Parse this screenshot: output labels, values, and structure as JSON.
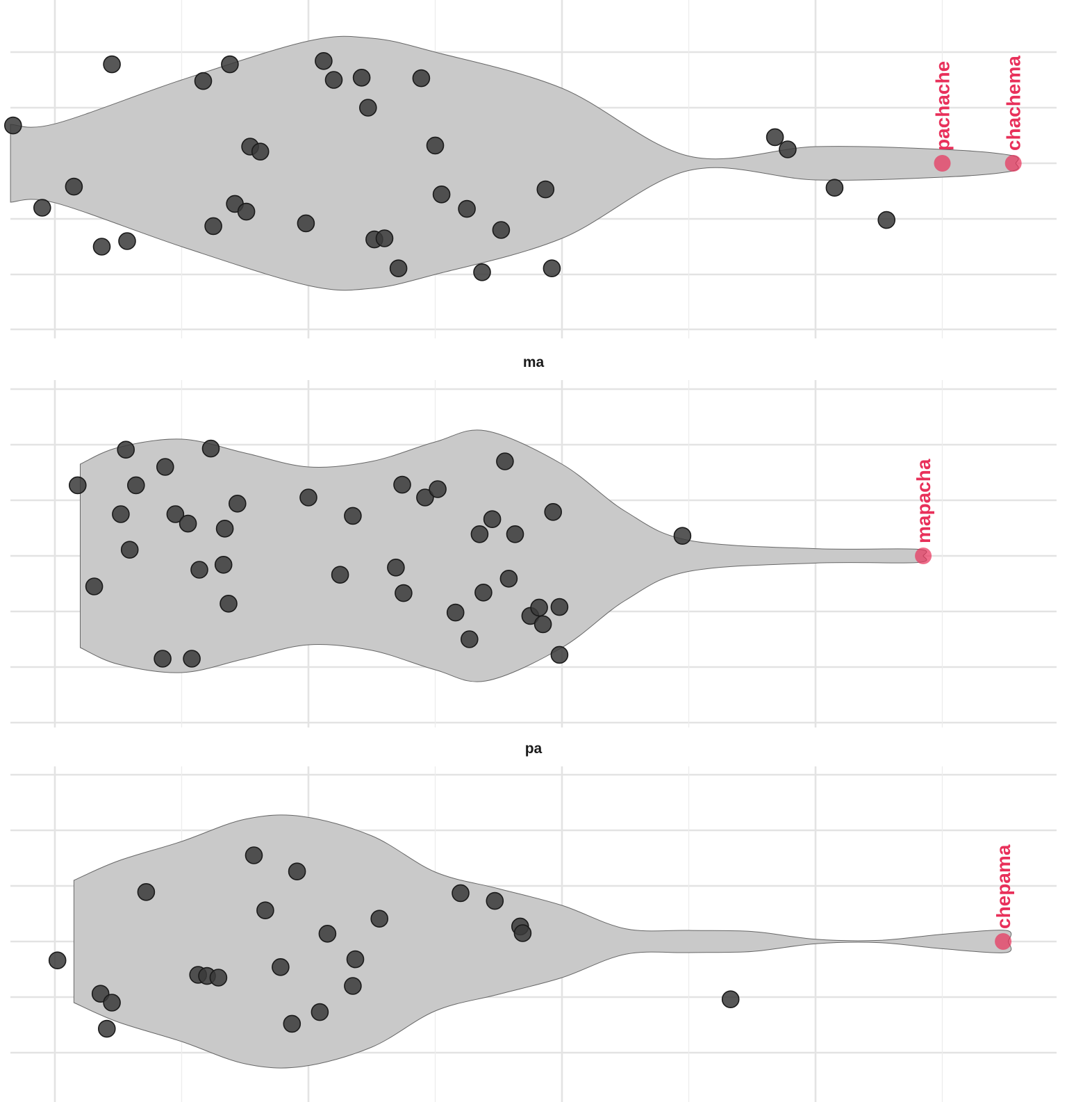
{
  "chart_data": [
    {
      "type": "violin",
      "title": "",
      "xlabel": "",
      "ylabel": "",
      "xlim": [
        -0.35,
        7.95
      ],
      "ylim": [
        -3,
        3
      ],
      "grid": true,
      "violin_color": "#c9c9c9",
      "point_color": "#333333",
      "highlight_color": "#e8305a",
      "violin_profile": [
        [
          -0.35,
          0.7
        ],
        [
          0,
          0.71
        ],
        [
          1,
          1.5
        ],
        [
          2,
          2.2
        ],
        [
          2.5,
          2.25
        ],
        [
          3,
          2.0
        ],
        [
          4,
          1.35
        ],
        [
          5,
          0.13
        ],
        [
          6,
          0.3
        ],
        [
          7,
          0.25
        ],
        [
          7.55,
          0.14
        ],
        [
          7.58,
          0.0
        ]
      ],
      "points": [
        {
          "x": -0.33,
          "y": 0.68
        },
        {
          "x": 0.45,
          "y": 1.78
        },
        {
          "x": 1.17,
          "y": 1.48
        },
        {
          "x": 1.38,
          "y": 1.78
        },
        {
          "x": 2.12,
          "y": 1.84
        },
        {
          "x": 2.2,
          "y": 1.5
        },
        {
          "x": 2.42,
          "y": 1.54
        },
        {
          "x": 2.47,
          "y": 1.0
        },
        {
          "x": 2.89,
          "y": 1.53
        },
        {
          "x": -0.1,
          "y": -0.8
        },
        {
          "x": 0.15,
          "y": -0.42
        },
        {
          "x": 0.37,
          "y": -1.5
        },
        {
          "x": 0.57,
          "y": -1.4
        },
        {
          "x": 1.25,
          "y": -1.13
        },
        {
          "x": 1.42,
          "y": -0.73
        },
        {
          "x": 1.51,
          "y": -0.87
        },
        {
          "x": 1.54,
          "y": 0.3
        },
        {
          "x": 1.62,
          "y": 0.21
        },
        {
          "x": 1.98,
          "y": -1.08
        },
        {
          "x": 2.52,
          "y": -1.37
        },
        {
          "x": 2.6,
          "y": -1.35
        },
        {
          "x": 2.71,
          "y": -1.89
        },
        {
          "x": 3.0,
          "y": 0.32
        },
        {
          "x": 3.05,
          "y": -0.56
        },
        {
          "x": 3.25,
          "y": -0.82
        },
        {
          "x": 3.37,
          "y": -1.96
        },
        {
          "x": 3.52,
          "y": -1.2
        },
        {
          "x": 3.87,
          "y": -0.47
        },
        {
          "x": 3.92,
          "y": -1.89
        },
        {
          "x": 5.68,
          "y": 0.47
        },
        {
          "x": 5.78,
          "y": 0.25
        },
        {
          "x": 6.15,
          "y": -0.44
        },
        {
          "x": 6.56,
          "y": -1.02
        }
      ],
      "highlighted": [
        {
          "label": "pachache",
          "x": 7.0,
          "y": 0.0
        },
        {
          "label": "chachema",
          "x": 7.56,
          "y": 0.0
        }
      ]
    },
    {
      "type": "violin",
      "title": "ma",
      "xlabel": "",
      "ylabel": "",
      "xlim": [
        -0.35,
        7.95
      ],
      "ylim": [
        -3,
        3
      ],
      "grid": true,
      "violin_profile": [
        [
          0.2,
          1.65
        ],
        [
          0.5,
          1.95
        ],
        [
          1.0,
          2.1
        ],
        [
          1.5,
          1.85
        ],
        [
          2.0,
          1.6
        ],
        [
          2.5,
          1.7
        ],
        [
          3.0,
          2.05
        ],
        [
          3.4,
          2.25
        ],
        [
          4.0,
          1.65
        ],
        [
          4.5,
          0.8
        ],
        [
          5.0,
          0.28
        ],
        [
          6.0,
          0.13
        ],
        [
          6.8,
          0.12
        ],
        [
          6.85,
          0.0
        ]
      ],
      "points": [
        {
          "x": 0.18,
          "y": 1.27
        },
        {
          "x": 0.56,
          "y": 1.91
        },
        {
          "x": 0.64,
          "y": 1.27
        },
        {
          "x": 0.87,
          "y": 1.6
        },
        {
          "x": 1.23,
          "y": 1.93
        },
        {
          "x": 0.52,
          "y": 0.75
        },
        {
          "x": 0.59,
          "y": 0.11
        },
        {
          "x": 0.95,
          "y": 0.75
        },
        {
          "x": 1.05,
          "y": 0.58
        },
        {
          "x": 1.44,
          "y": 0.94
        },
        {
          "x": 1.34,
          "y": 0.49
        },
        {
          "x": 2.0,
          "y": 1.05
        },
        {
          "x": 2.35,
          "y": 0.72
        },
        {
          "x": 2.74,
          "y": 1.28
        },
        {
          "x": 2.92,
          "y": 1.05
        },
        {
          "x": 3.02,
          "y": 1.2
        },
        {
          "x": 3.55,
          "y": 1.7
        },
        {
          "x": 4.95,
          "y": 0.36
        },
        {
          "x": 3.45,
          "y": 0.66
        },
        {
          "x": 3.35,
          "y": 0.39
        },
        {
          "x": 3.63,
          "y": 0.39
        },
        {
          "x": 3.93,
          "y": 0.79
        },
        {
          "x": 0.31,
          "y": -0.55
        },
        {
          "x": 1.14,
          "y": -0.25
        },
        {
          "x": 1.33,
          "y": -0.16
        },
        {
          "x": 1.37,
          "y": -0.86
        },
        {
          "x": 2.25,
          "y": -0.34
        },
        {
          "x": 2.69,
          "y": -0.21
        },
        {
          "x": 2.75,
          "y": -0.67
        },
        {
          "x": 3.16,
          "y": -1.02
        },
        {
          "x": 3.27,
          "y": -1.5
        },
        {
          "x": 3.38,
          "y": -0.66
        },
        {
          "x": 3.58,
          "y": -0.41
        },
        {
          "x": 3.75,
          "y": -1.08
        },
        {
          "x": 3.82,
          "y": -0.93
        },
        {
          "x": 3.85,
          "y": -1.23
        },
        {
          "x": 0.85,
          "y": -1.85
        },
        {
          "x": 1.08,
          "y": -1.85
        },
        {
          "x": 3.98,
          "y": -0.92
        },
        {
          "x": 3.98,
          "y": -1.78
        }
      ],
      "highlighted": [
        {
          "label": "mapacha",
          "x": 6.85,
          "y": 0.0
        }
      ]
    },
    {
      "type": "violin",
      "title": "pa",
      "xlabel": "",
      "ylabel": "",
      "xlim": [
        -0.35,
        7.95
      ],
      "ylim": [
        -3,
        3
      ],
      "grid": true,
      "violin_profile": [
        [
          0.15,
          1.1
        ],
        [
          0.5,
          1.45
        ],
        [
          1.0,
          1.8
        ],
        [
          1.5,
          2.2
        ],
        [
          1.95,
          2.25
        ],
        [
          2.5,
          1.9
        ],
        [
          3.0,
          1.25
        ],
        [
          3.5,
          0.95
        ],
        [
          4.0,
          0.65
        ],
        [
          4.5,
          0.23
        ],
        [
          5.0,
          0.2
        ],
        [
          5.5,
          0.18
        ],
        [
          6.0,
          0.04
        ],
        [
          6.5,
          0.02
        ],
        [
          7.0,
          0.13
        ],
        [
          7.5,
          0.2
        ],
        [
          7.52,
          0.0
        ]
      ],
      "points": [
        {
          "x": 0.72,
          "y": 0.89
        },
        {
          "x": 1.57,
          "y": 1.55
        },
        {
          "x": 1.91,
          "y": 1.26
        },
        {
          "x": 1.66,
          "y": 0.56
        },
        {
          "x": 2.15,
          "y": 0.14
        },
        {
          "x": 2.56,
          "y": 0.41
        },
        {
          "x": 3.2,
          "y": 0.87
        },
        {
          "x": 3.47,
          "y": 0.73
        },
        {
          "x": 3.67,
          "y": 0.27
        },
        {
          "x": 3.69,
          "y": 0.15
        },
        {
          "x": 0.02,
          "y": -0.34
        },
        {
          "x": 0.36,
          "y": -0.94
        },
        {
          "x": 0.45,
          "y": -1.1
        },
        {
          "x": 0.41,
          "y": -1.57
        },
        {
          "x": 1.13,
          "y": -0.6
        },
        {
          "x": 1.2,
          "y": -0.62
        },
        {
          "x": 1.29,
          "y": -0.65
        },
        {
          "x": 1.78,
          "y": -0.46
        },
        {
          "x": 1.87,
          "y": -1.48
        },
        {
          "x": 2.09,
          "y": -1.27
        },
        {
          "x": 2.37,
          "y": -0.32
        },
        {
          "x": 2.35,
          "y": -0.8
        },
        {
          "x": 5.33,
          "y": -1.04
        }
      ],
      "highlighted": [
        {
          "label": "chepama",
          "x": 7.48,
          "y": 0.0
        }
      ]
    }
  ]
}
